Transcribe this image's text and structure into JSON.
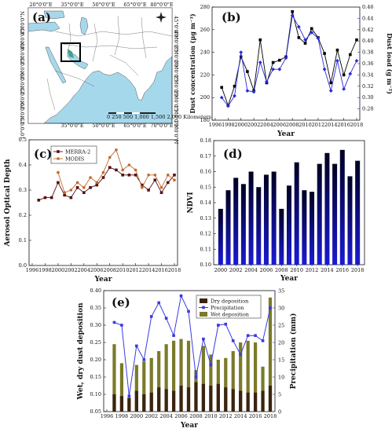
{
  "panel_labels": {
    "a": "(a)",
    "b": "(b)",
    "c": "(c)",
    "d": "(d)",
    "e": "(e)"
  },
  "map": {
    "lon_labels": [
      "20°0'0\"E",
      "35°0'0\"E",
      "50°0'0\"E",
      "65°0'0\"E",
      "80°0'0\"E"
    ],
    "lon_labels_bottom": [
      "35°0'0\"E",
      "50°0'0\"E",
      "65°0'0\"E",
      "70°0'0\"E"
    ],
    "lat_labels": [
      "45°0'0\"N",
      "40°0'0\"N",
      "35°0'0\"N",
      "30°0'0\"N",
      "25°0'0\"N",
      "20°0'0\"N",
      "15°0'0\"N",
      "10°0'0\"N"
    ],
    "scale_label": "0  250 500  1,000  1,500  2,000 Kilometers",
    "colors": {
      "sea": "#a6d8ec",
      "land": "#ffffff",
      "border": "#222222",
      "box": "#000000"
    }
  },
  "chart_data": [
    {
      "id": "b",
      "type": "line",
      "xlabel": "Year",
      "ylabel": "Dust concentration (μg m⁻³)",
      "ylabel2": "Dust load (g m⁻²)",
      "xlim": [
        1996,
        2018
      ],
      "ylim": [
        180,
        280
      ],
      "ylim2": [
        0.26,
        0.46
      ],
      "x": [
        1997,
        1998,
        1999,
        2000,
        2001,
        2002,
        2003,
        2004,
        2005,
        2006,
        2007,
        2008,
        2009,
        2010,
        2011,
        2012,
        2013,
        2014,
        2015,
        2016,
        2017,
        2018
      ],
      "series": [
        {
          "name": "",
          "axis": "left",
          "color": "#000000",
          "marker": "square",
          "values": [
            209,
            193,
            210,
            236,
            223,
            206,
            251,
            213,
            231,
            233,
            236,
            276,
            253,
            248,
            261,
            253,
            239,
            213,
            242,
            220,
            238,
            251
          ]
        },
        {
          "name": "",
          "axis": "right",
          "color": "#2b2bd9",
          "marker": "diamond",
          "values": [
            0.3,
            0.285,
            0.303,
            0.38,
            0.312,
            0.31,
            0.362,
            0.328,
            0.35,
            0.35,
            0.37,
            0.445,
            0.425,
            0.402,
            0.415,
            0.405,
            0.35,
            0.312,
            0.365,
            0.315,
            0.342,
            0.365
          ]
        }
      ]
    },
    {
      "id": "c",
      "type": "line",
      "xlabel": "Year",
      "ylabel": "Aerosol Optical Depth",
      "xlim": [
        1996,
        2018
      ],
      "ylim": [
        0.0,
        0.5
      ],
      "x": [
        1997,
        1998,
        1999,
        2000,
        2001,
        2002,
        2003,
        2004,
        2005,
        2006,
        2007,
        2008,
        2009,
        2010,
        2011,
        2012,
        2013,
        2014,
        2015,
        2016,
        2017,
        2018
      ],
      "legend": [
        "MERRA-2",
        "MODIS"
      ],
      "series": [
        {
          "name": "MERRA-2",
          "color": "#5a0f12",
          "marker": "square",
          "values": [
            0.26,
            0.27,
            0.27,
            0.33,
            0.28,
            0.27,
            0.31,
            0.29,
            0.31,
            0.32,
            0.35,
            0.39,
            0.38,
            0.36,
            0.36,
            0.36,
            0.32,
            0.3,
            0.34,
            0.29,
            0.33,
            0.36
          ]
        },
        {
          "name": "MODIS",
          "color": "#c06a2e",
          "marker": "circle",
          "values": [
            null,
            null,
            null,
            0.37,
            0.29,
            0.3,
            0.33,
            0.31,
            0.35,
            0.33,
            0.37,
            0.43,
            0.46,
            0.38,
            0.4,
            0.38,
            0.31,
            0.36,
            0.36,
            0.31,
            0.36,
            0.34
          ]
        }
      ]
    },
    {
      "id": "d",
      "type": "bar",
      "xlabel": "Year",
      "ylabel": "NDVI",
      "ylim": [
        0.1,
        0.18
      ],
      "x": [
        2000,
        2001,
        2002,
        2003,
        2004,
        2005,
        2006,
        2007,
        2008,
        2009,
        2010,
        2011,
        2012,
        2013,
        2014,
        2015,
        2016,
        2017,
        2018
      ],
      "values": [
        0.136,
        0.148,
        0.156,
        0.152,
        0.16,
        0.15,
        0.158,
        0.16,
        0.136,
        0.151,
        0.166,
        0.148,
        0.147,
        0.165,
        0.172,
        0.165,
        0.174,
        0.157,
        0.167
      ],
      "color": "#1a1ad6"
    },
    {
      "id": "e",
      "type": "bar",
      "xlabel": "Year",
      "ylabel": "Wet, dry dust deposition",
      "ylabel2": "Precipitation (mm)",
      "ylim": [
        0.05,
        0.4
      ],
      "ylim2": [
        0,
        35
      ],
      "x": [
        1997,
        1998,
        1999,
        2000,
        2001,
        2002,
        2003,
        2004,
        2005,
        2006,
        2007,
        2008,
        2009,
        2010,
        2011,
        2012,
        2013,
        2014,
        2015,
        2016,
        2017,
        2018
      ],
      "legend": [
        "Dry deposition",
        "Precipitation",
        "Wet deposition"
      ],
      "series": [
        {
          "name": "Dry deposition",
          "kind": "bar",
          "color": "#3a2410",
          "values": [
            0.1,
            0.095,
            0.09,
            0.11,
            0.1,
            0.105,
            0.12,
            0.115,
            0.11,
            0.125,
            0.12,
            0.135,
            0.13,
            0.125,
            0.13,
            0.12,
            0.115,
            0.11,
            0.105,
            0.105,
            0.11,
            0.125
          ]
        },
        {
          "name": "Wet deposition",
          "kind": "bar",
          "color": "#7a7a2a",
          "values": [
            0.245,
            0.19,
            0.09,
            0.185,
            0.195,
            0.205,
            0.225,
            0.245,
            0.255,
            0.26,
            0.255,
            0.17,
            0.24,
            0.215,
            0.2,
            0.205,
            0.225,
            0.25,
            0.255,
            0.25,
            0.18,
            0.38
          ]
        },
        {
          "name": "Precipitation",
          "kind": "line",
          "axis": "right",
          "color": "#3a3ae0",
          "values": [
            25.8,
            25.0,
            4.5,
            19.0,
            15.0,
            27.5,
            31.5,
            27.0,
            22.0,
            33.5,
            29.0,
            10.0,
            21.0,
            13.5,
            25.0,
            25.3,
            20.5,
            16.5,
            22.0,
            22.0,
            20.5,
            30.0
          ]
        }
      ]
    }
  ]
}
